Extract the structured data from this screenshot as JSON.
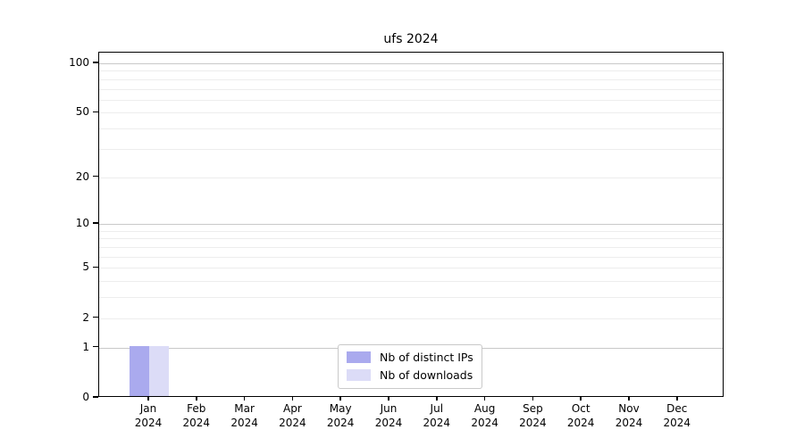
{
  "chart_data": {
    "type": "bar",
    "title": "ufs 2024",
    "categories": [
      "Jan",
      "Feb",
      "Mar",
      "Apr",
      "May",
      "Jun",
      "Jul",
      "Aug",
      "Sep",
      "Oct",
      "Nov",
      "Dec"
    ],
    "category_year": "2024",
    "series": [
      {
        "name": "Nb of distinct IPs",
        "slug": "distinct-ips",
        "color": "#aaaaee",
        "values": [
          1,
          0,
          0,
          0,
          0,
          0,
          0,
          0,
          0,
          0,
          0,
          0
        ]
      },
      {
        "name": "Nb of downloads",
        "slug": "downloads",
        "color": "#dcdcf7",
        "values": [
          1,
          0,
          0,
          0,
          0,
          0,
          0,
          0,
          0,
          0,
          0,
          0
        ]
      }
    ],
    "yscale": "log1p",
    "ylim": [
      0,
      116
    ],
    "yticks": [
      0,
      1,
      2,
      5,
      10,
      20,
      50,
      100
    ],
    "grid_major": [
      1,
      10,
      100
    ],
    "grid_minor": [
      2,
      3,
      4,
      5,
      6,
      7,
      8,
      9,
      20,
      30,
      40,
      50,
      60,
      70,
      80,
      90
    ],
    "legend_position": "bottom-center",
    "axis_color": "#000000"
  }
}
